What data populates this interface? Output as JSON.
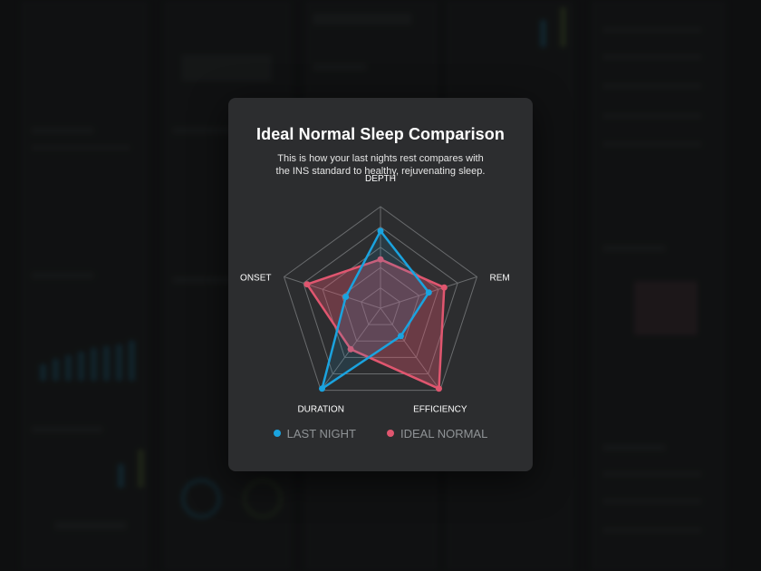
{
  "modal": {
    "title": "Ideal Normal Sleep Comparison",
    "subtitle_line1": "This is how your last nights rest compares with",
    "subtitle_line2": "the INS standard to healthy, rejuvenating sleep."
  },
  "colors": {
    "last_night": "#1aa3df",
    "ideal_normal": "#e0566f",
    "grid": "#6a6c6e",
    "modal_bg": "#2c2d2f"
  },
  "chart_data": {
    "type": "radar",
    "axes": [
      "DEPTH",
      "REM",
      "EFFICIENCY",
      "DURATION",
      "ONSET"
    ],
    "scale_max": 5,
    "grid_levels": 5,
    "series": [
      {
        "name": "LAST NIGHT",
        "color": "#1aa3df",
        "values": [
          3.8,
          2.5,
          1.7,
          4.9,
          1.8
        ]
      },
      {
        "name": "IDEAL NORMAL",
        "color": "#e0566f",
        "values": [
          2.4,
          3.3,
          4.9,
          2.5,
          3.8
        ]
      }
    ]
  },
  "legend": [
    {
      "label": "LAST NIGHT",
      "color": "#1aa3df"
    },
    {
      "label": "IDEAL NORMAL",
      "color": "#e0566f"
    }
  ]
}
